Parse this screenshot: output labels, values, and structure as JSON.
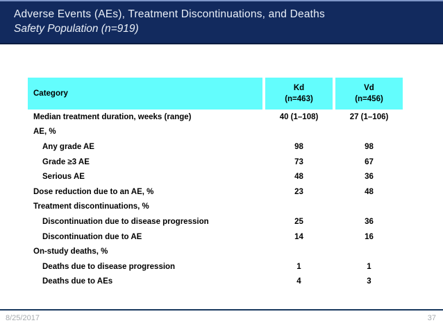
{
  "header": {
    "title": "Adverse Events (AEs), Treatment Discontinuations, and Deaths",
    "subtitle": "Safety Population (n=919)"
  },
  "table": {
    "columns": [
      {
        "label": "Category"
      },
      {
        "line1": "Kd",
        "line2": "(n=463)"
      },
      {
        "line1": "Vd",
        "line2": "(n=456)"
      }
    ],
    "rows": [
      {
        "label": "Median treatment duration, weeks (range)",
        "kd": "40 (1–108)",
        "vd": "27 (1–106)",
        "indent": false
      },
      {
        "label": "AE, %",
        "kd": "",
        "vd": "",
        "indent": false
      },
      {
        "label": "Any grade AE",
        "kd": "98",
        "vd": "98",
        "indent": true
      },
      {
        "label": "Grade ≥3 AE",
        "kd": "73",
        "vd": "67",
        "indent": true
      },
      {
        "label": "Serious AE",
        "kd": "48",
        "vd": "36",
        "indent": true
      },
      {
        "label": "Dose reduction due to an AE, %",
        "kd": "23",
        "vd": "48",
        "indent": false
      },
      {
        "label": "Treatment discontinuations, %",
        "kd": "",
        "vd": "",
        "indent": false
      },
      {
        "label": "Discontinuation due to disease progression",
        "kd": "25",
        "vd": "36",
        "indent": true
      },
      {
        "label": "Discontinuation due to AE",
        "kd": "14",
        "vd": "16",
        "indent": true
      },
      {
        "label": "On-study deaths, %",
        "kd": "",
        "vd": "",
        "indent": false
      },
      {
        "label": "Deaths due to disease progression",
        "kd": "1",
        "vd": "1",
        "indent": true
      },
      {
        "label": "Deaths due to AEs",
        "kd": "4",
        "vd": "3",
        "indent": true
      }
    ]
  },
  "footer": {
    "date": "8/25/2017",
    "page_number": "37"
  },
  "colors": {
    "banner_bg": "#122A5E",
    "banner_top_edge": "#7E96C8",
    "banner_bottom_edge": "#0A1C40",
    "banner_text": "#EAF0F8",
    "table_header_bg": "#63FDFD",
    "table_text": "#000000",
    "footer_rule": "#17365D",
    "footer_text": "#A6AAAE"
  }
}
